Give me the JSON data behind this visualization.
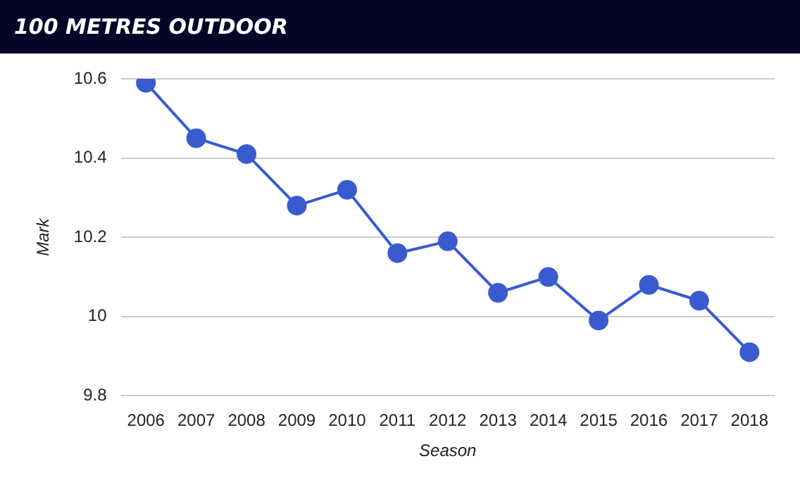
{
  "chart_data": {
    "type": "line",
    "title": "100 METRES OUTDOOR",
    "xlabel": "Season",
    "ylabel": "Mark",
    "categories": [
      "2006",
      "2007",
      "2008",
      "2009",
      "2010",
      "2011",
      "2012",
      "2013",
      "2014",
      "2015",
      "2016",
      "2017",
      "2018"
    ],
    "series": [
      {
        "color": "#3a5bd0",
        "values": [
          10.59,
          10.45,
          10.41,
          10.28,
          10.32,
          10.16,
          10.19,
          10.06,
          10.1,
          9.99,
          10.08,
          10.04,
          9.91
        ]
      }
    ],
    "ylim": [
      9.8,
      10.6
    ],
    "yticks": [
      9.8,
      10,
      10.2,
      10.4,
      10.6
    ],
    "grid": "y",
    "legend": false,
    "marker": "circle",
    "line_style": "solid"
  }
}
